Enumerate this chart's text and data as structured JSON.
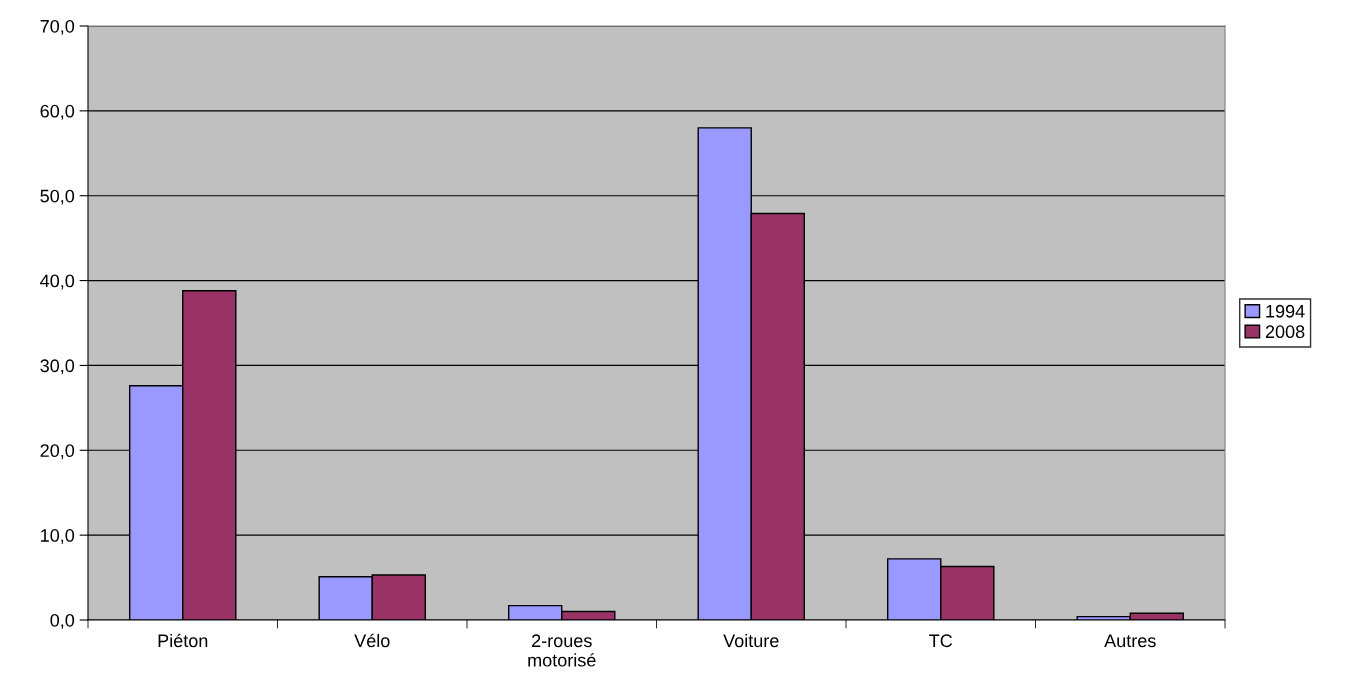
{
  "chart_data": {
    "type": "bar",
    "categories": [
      "Piéton",
      "Vélo",
      "2-roues\nmotorisé",
      "Voiture",
      "TC",
      "Autres"
    ],
    "series": [
      {
        "name": "1994",
        "color": "#9999ff",
        "values": [
          27.6,
          5.1,
          1.7,
          58.0,
          7.2,
          0.4
        ]
      },
      {
        "name": "2008",
        "color": "#993366",
        "values": [
          38.8,
          5.3,
          1.0,
          47.9,
          6.3,
          0.8
        ]
      }
    ],
    "ylim": [
      0,
      70
    ],
    "yticks": [
      {
        "value": 0,
        "label": "0,0"
      },
      {
        "value": 10,
        "label": "10,0"
      },
      {
        "value": 20,
        "label": "20,0"
      },
      {
        "value": 30,
        "label": "30,0"
      },
      {
        "value": 40,
        "label": "40,0"
      },
      {
        "value": 50,
        "label": "50,0"
      },
      {
        "value": 60,
        "label": "60,0"
      },
      {
        "value": 70,
        "label": "70,0"
      }
    ],
    "grid": "y",
    "legend": "right"
  }
}
